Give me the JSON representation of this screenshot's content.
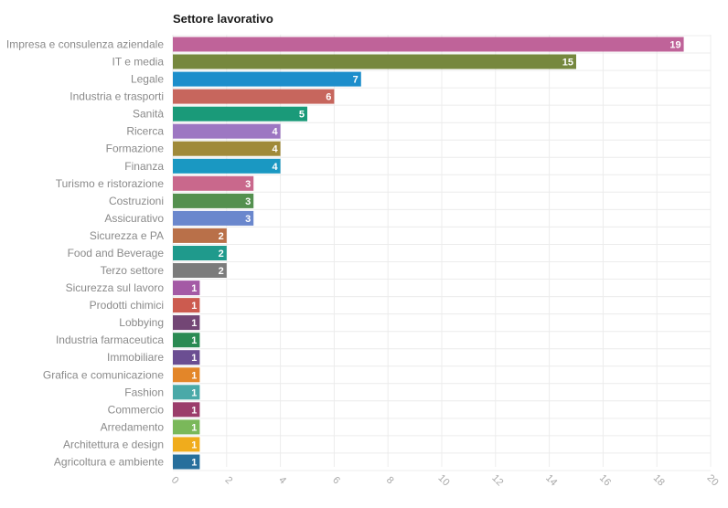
{
  "chart_data": {
    "type": "bar",
    "orientation": "horizontal",
    "title": "Settore lavorativo",
    "xlabel": "",
    "ylabel": "",
    "xlim": [
      0,
      20
    ],
    "x_ticks": [
      0,
      2,
      4,
      6,
      8,
      10,
      12,
      14,
      16,
      18,
      20
    ],
    "grid": true,
    "legend": "none",
    "categories": [
      "Impresa e consulenza aziendale",
      "IT e media",
      "Legale",
      "Industria e trasporti",
      "Sanità",
      "Ricerca",
      "Formazione",
      "Finanza",
      "Turismo e ristorazione",
      "Costruzioni",
      "Assicurativo",
      "Sicurezza e PA",
      "Food and Beverage",
      "Terzo settore",
      "Sicurezza sul lavoro",
      "Prodotti chimici",
      "Lobbying",
      "Industria farmaceutica",
      "Immobiliare",
      "Grafica e comunicazione",
      "Fashion",
      "Commercio",
      "Arredamento",
      "Architettura e design",
      "Agricoltura e ambiente"
    ],
    "values": [
      19,
      15,
      7,
      6,
      5,
      4,
      4,
      4,
      3,
      3,
      3,
      2,
      2,
      2,
      1,
      1,
      1,
      1,
      1,
      1,
      1,
      1,
      1,
      1,
      1
    ],
    "colors": [
      "#bf6399",
      "#76883e",
      "#1d8ecb",
      "#c7665d",
      "#1a9a79",
      "#9d77c2",
      "#a08a39",
      "#1a98c2",
      "#c9688c",
      "#54904f",
      "#6a87cd",
      "#b97049",
      "#1f9a8c",
      "#7b7b7b",
      "#a45aa5",
      "#cc5b4f",
      "#734675",
      "#2a8a52",
      "#6b4e92",
      "#e38629",
      "#4aa9a8",
      "#9b3d6b",
      "#7ab85a",
      "#f0ac1c",
      "#276f9c"
    ]
  }
}
